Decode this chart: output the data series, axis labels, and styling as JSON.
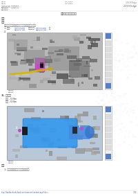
{
  "page_bg": "#ffffff",
  "header_left_top": "车辆动态",
  "header_center_top": "悬架 主动悬架",
  "header_right_top": "2019 Edge",
  "header_left_sub": "2018-05 车辆动态/悬架",
  "header_left_sub2": "车辆动态悬架",
  "title": "前悬架安装件的拆卸",
  "section1_label": "说明",
  "section2_label": "过程",
  "step1_text": "此过程中包括影响悬架总成安装安全性的扭矩值。",
  "step1a_prefix": "< 参考: ",
  "step1a_link1": "前轮毂轴承/轮毂",
  "step1a_mid": " 中的程序 ",
  "step1a_link2": "前轮毂轴承/轮毂",
  "step1a_end": "。",
  "step1b_label": "2.",
  "img1_bg": "#aaaaaa",
  "img1_caption": "图示号码图",
  "img2_bg": "#90c0d8",
  "img2_caption": "图示号码图",
  "step3_label": "3. 拆卸：",
  "step3_item1": "螺母 - 0 Nm",
  "step3_item2": "螺栓 - 0 Nm",
  "footer_result_label": "结果",
  "footer_result_text": "1. 检查前悬架安装件是否完好无损。",
  "footer_url": "http://fordtechinfo.ford.com/content/content.asp?file=...",
  "footer_page": "1/2",
  "sidebar_color": "#4472c4",
  "text_dark": "#333333",
  "text_gray": "#666666",
  "link_color": "#3355aa"
}
